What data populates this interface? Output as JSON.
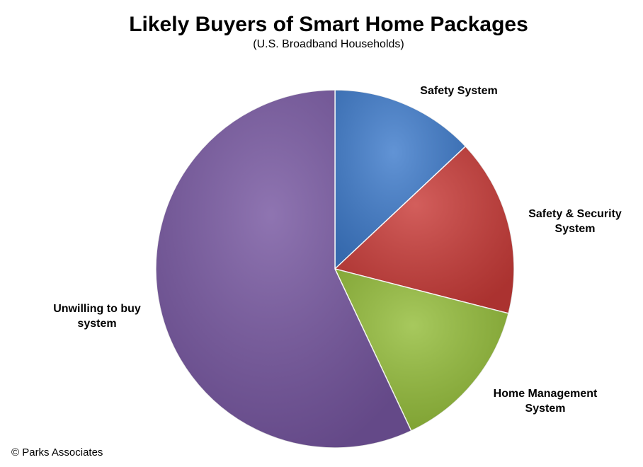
{
  "chart_data": {
    "type": "pie",
    "title": "Likely Buyers of Smart Home Packages",
    "subtitle": "(U.S. Broadband Households)",
    "source": "© Parks Associates",
    "categories": [
      "Safety System",
      "Safety & Security System",
      "Home Management System",
      "Unwilling to buy system"
    ],
    "values": [
      13,
      16,
      14,
      57
    ],
    "colors": [
      "#3f7ccc",
      "#c93b38",
      "#94bd3a",
      "#7656a0"
    ]
  }
}
